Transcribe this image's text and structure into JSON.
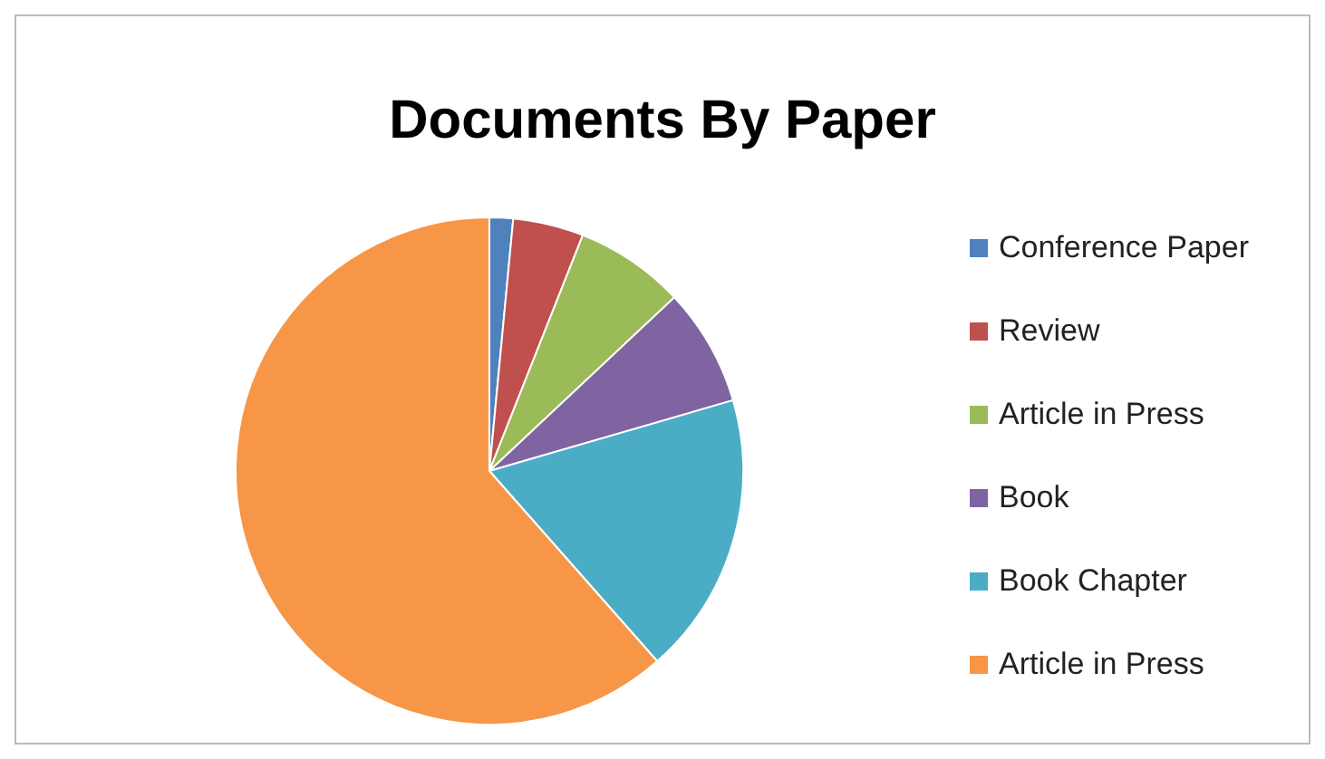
{
  "chart_data": {
    "type": "pie",
    "title": "Documents By Paper",
    "categories": [
      "Conference Paper",
      "Review",
      "Article in Press",
      "Book",
      "Book Chapter",
      "Article in Press"
    ],
    "values": [
      1.5,
      4.5,
      7,
      7.5,
      18,
      61.5
    ],
    "colors": [
      "#4f81bd",
      "#c0504d",
      "#9bbb59",
      "#8064a2",
      "#4bacc6",
      "#f79646"
    ],
    "legend": "right"
  }
}
